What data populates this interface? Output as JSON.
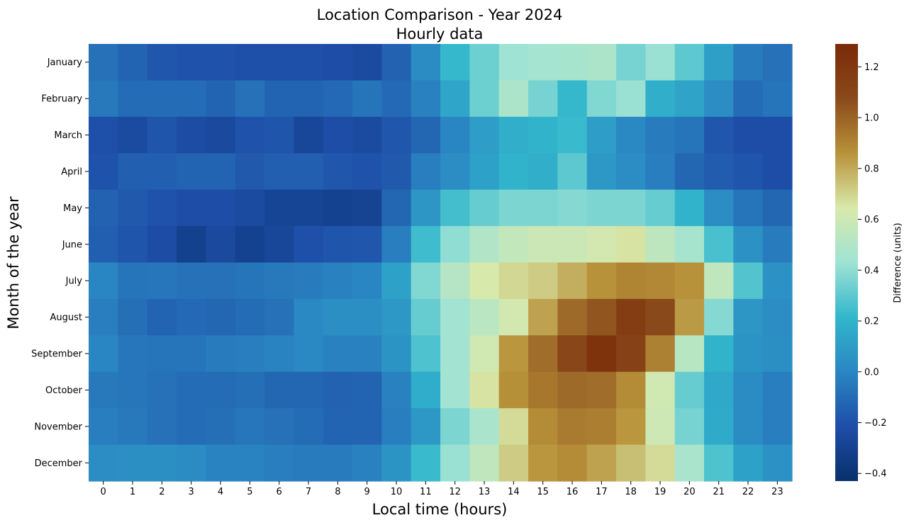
{
  "chart_data": {
    "type": "heatmap",
    "title": "Location Comparison - Year 2024",
    "subtitle": "Hourly data",
    "xlabel": "Local time (hours)",
    "ylabel": "Month of the year",
    "colorbar_label": "Difference (units)",
    "x": [
      "0",
      "1",
      "2",
      "3",
      "4",
      "5",
      "6",
      "7",
      "8",
      "9",
      "10",
      "11",
      "12",
      "13",
      "14",
      "15",
      "16",
      "17",
      "18",
      "19",
      "20",
      "21",
      "22",
      "23"
    ],
    "y": [
      "January",
      "February",
      "March",
      "April",
      "May",
      "June",
      "July",
      "August",
      "September",
      "October",
      "November",
      "December"
    ],
    "vmin": -0.43,
    "vmax": 1.29,
    "colorbar_ticks": [
      -0.4,
      -0.2,
      0.0,
      0.2,
      0.4,
      0.6,
      0.8,
      1.0,
      1.2
    ],
    "colorbar_tick_labels": [
      "−0.4",
      "−0.2",
      "0.0",
      "0.2",
      "0.4",
      "0.6",
      "0.8",
      "1.0",
      "1.2"
    ],
    "colormap": [
      "#08306b",
      "#1e4ea8",
      "#2a86c2",
      "#32b7cc",
      "#9fe3d4",
      "#d9e9ab",
      "#b8923a",
      "#8a4a1b",
      "#7a2a08"
    ],
    "values": [
      [
        -0.08,
        -0.13,
        -0.18,
        -0.2,
        -0.2,
        -0.21,
        -0.21,
        -0.21,
        -0.22,
        -0.24,
        -0.14,
        0.02,
        0.22,
        0.33,
        0.43,
        0.45,
        0.46,
        0.48,
        0.35,
        0.42,
        0.3,
        0.11,
        -0.04,
        -0.08
      ],
      [
        -0.05,
        -0.1,
        -0.1,
        -0.1,
        -0.13,
        -0.08,
        -0.13,
        -0.13,
        -0.11,
        -0.07,
        -0.11,
        -0.02,
        0.14,
        0.33,
        0.48,
        0.35,
        0.22,
        0.37,
        0.42,
        0.18,
        0.13,
        0.03,
        -0.1,
        -0.07
      ],
      [
        -0.21,
        -0.24,
        -0.19,
        -0.23,
        -0.25,
        -0.2,
        -0.19,
        -0.27,
        -0.22,
        -0.24,
        -0.18,
        -0.12,
        0.0,
        0.1,
        0.18,
        0.2,
        0.23,
        0.1,
        0.01,
        -0.04,
        -0.07,
        -0.18,
        -0.22,
        -0.22
      ],
      [
        -0.2,
        -0.15,
        -0.15,
        -0.13,
        -0.13,
        -0.17,
        -0.15,
        -0.15,
        -0.18,
        -0.2,
        -0.17,
        -0.03,
        0.03,
        0.12,
        0.2,
        0.18,
        0.3,
        0.08,
        0.03,
        -0.03,
        -0.12,
        -0.16,
        -0.19,
        -0.22
      ],
      [
        -0.14,
        -0.17,
        -0.2,
        -0.22,
        -0.22,
        -0.24,
        -0.28,
        -0.28,
        -0.3,
        -0.29,
        -0.12,
        0.07,
        0.25,
        0.32,
        0.36,
        0.36,
        0.38,
        0.36,
        0.36,
        0.32,
        0.2,
        0.03,
        -0.07,
        -0.12
      ],
      [
        -0.15,
        -0.19,
        -0.23,
        -0.31,
        -0.25,
        -0.3,
        -0.27,
        -0.21,
        -0.19,
        -0.18,
        -0.03,
        0.24,
        0.4,
        0.5,
        0.56,
        0.59,
        0.59,
        0.62,
        0.66,
        0.54,
        0.46,
        0.26,
        0.05,
        -0.04
      ],
      [
        0.0,
        -0.07,
        -0.06,
        -0.08,
        -0.08,
        -0.07,
        -0.05,
        -0.04,
        -0.02,
        0.0,
        0.12,
        0.37,
        0.51,
        0.64,
        0.69,
        0.72,
        0.79,
        0.86,
        0.9,
        0.89,
        0.86,
        0.55,
        0.28,
        0.05
      ],
      [
        -0.03,
        -0.09,
        -0.13,
        -0.11,
        -0.12,
        -0.1,
        -0.08,
        0.01,
        0.04,
        0.04,
        0.08,
        0.32,
        0.44,
        0.53,
        0.62,
        0.82,
        0.98,
        1.04,
        1.16,
        1.08,
        0.84,
        0.38,
        0.07,
        0.03
      ],
      [
        0.0,
        -0.06,
        -0.07,
        -0.07,
        -0.04,
        -0.03,
        -0.01,
        0.01,
        -0.02,
        -0.02,
        0.06,
        0.27,
        0.44,
        0.61,
        0.85,
        0.97,
        1.1,
        1.23,
        1.13,
        0.91,
        0.52,
        0.2,
        0.06,
        0.04
      ],
      [
        -0.05,
        -0.06,
        -0.08,
        -0.1,
        -0.1,
        -0.09,
        -0.12,
        -0.12,
        -0.14,
        -0.13,
        -0.02,
        0.17,
        0.44,
        0.66,
        0.87,
        0.94,
        0.98,
        0.97,
        0.88,
        0.61,
        0.32,
        0.15,
        0.02,
        -0.03
      ],
      [
        -0.03,
        -0.05,
        -0.08,
        -0.1,
        -0.09,
        -0.06,
        -0.08,
        -0.1,
        -0.13,
        -0.13,
        -0.03,
        0.08,
        0.36,
        0.47,
        0.68,
        0.88,
        0.93,
        0.92,
        0.85,
        0.6,
        0.35,
        0.16,
        0.02,
        -0.03
      ],
      [
        0.03,
        0.04,
        0.04,
        0.02,
        -0.01,
        -0.01,
        -0.03,
        -0.04,
        -0.04,
        -0.02,
        0.06,
        0.23,
        0.42,
        0.55,
        0.72,
        0.85,
        0.88,
        0.82,
        0.75,
        0.68,
        0.47,
        0.27,
        0.12,
        0.05
      ]
    ]
  }
}
